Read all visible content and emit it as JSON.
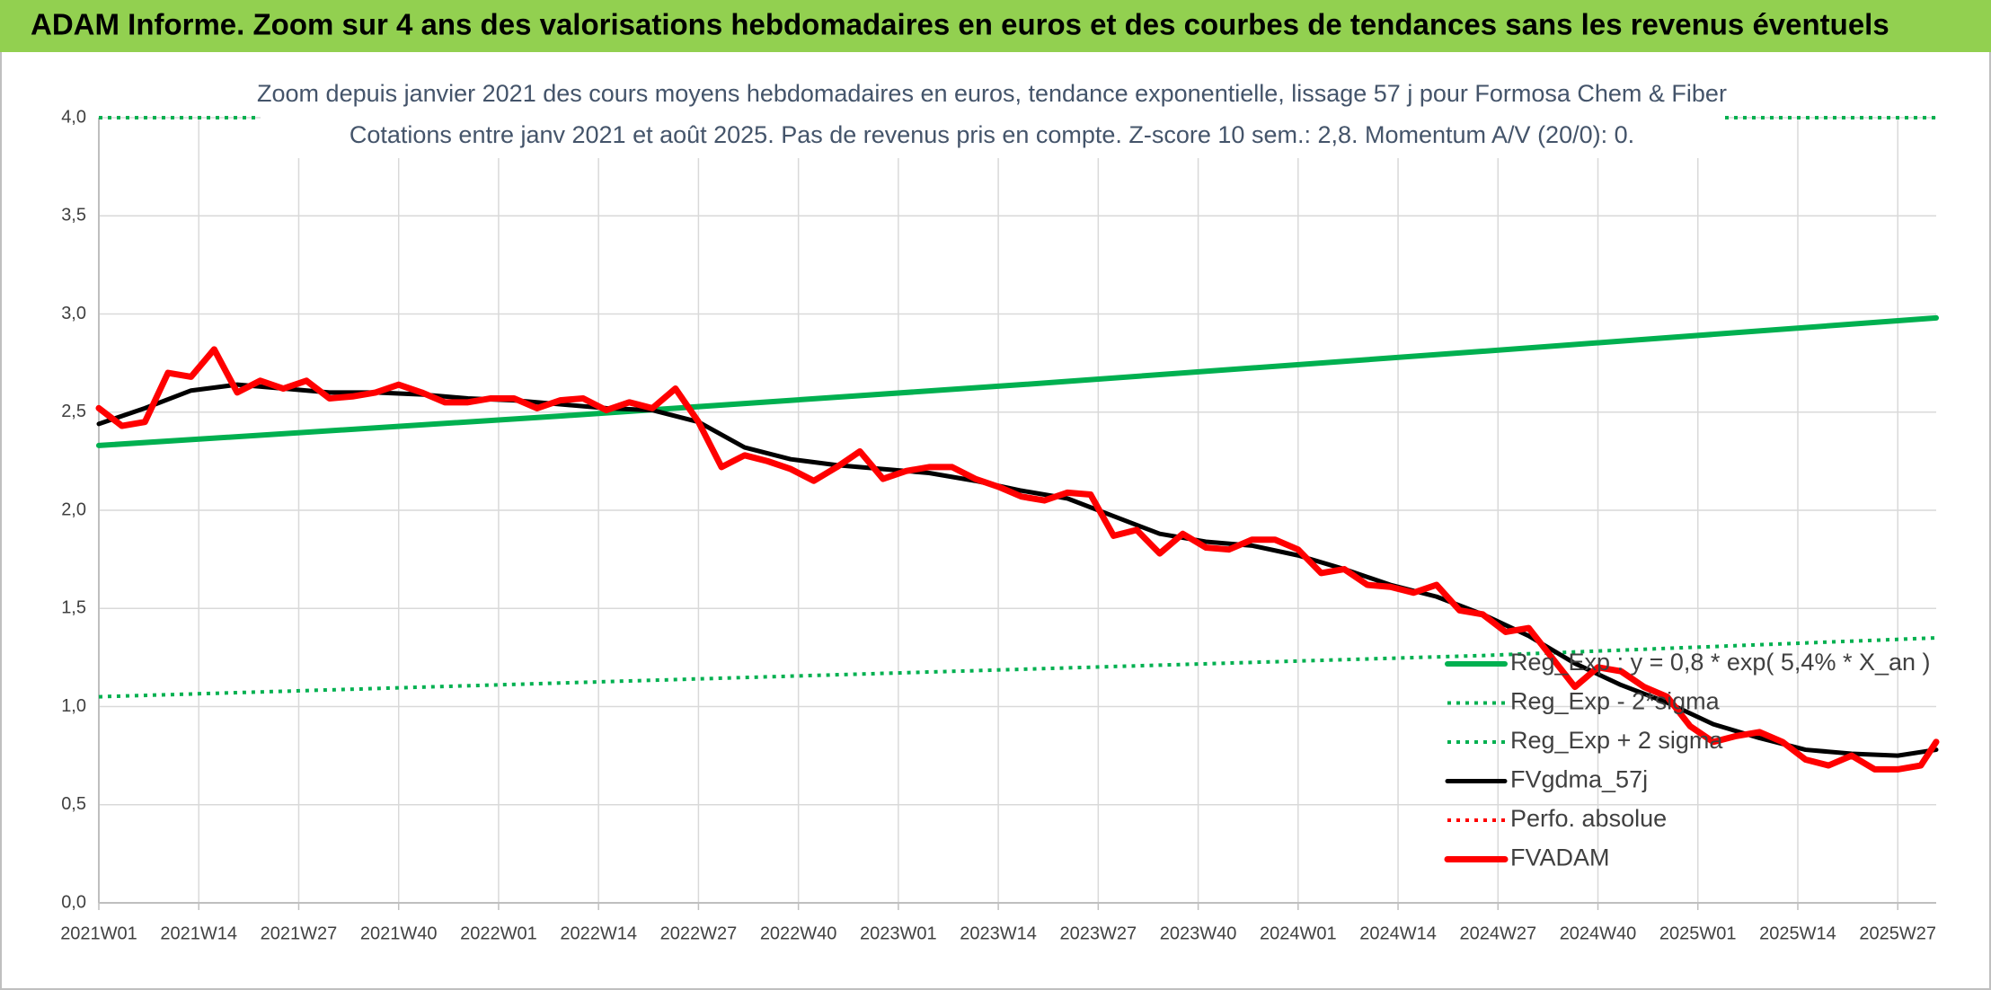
{
  "header": {
    "title": "ADAM Informe. Zoom sur 4 ans des valorisations hebdomadaires en euros et des courbes de tendances sans les revenus éventuels"
  },
  "chart_data": {
    "type": "line",
    "subtitle": [
      "Zoom depuis janvier 2021 des cours moyens hebdomadaires en euros, tendance exponentielle, lissage 57 j pour Formosa Chem & Fiber",
      "Cotations entre janv 2021 et août 2025. Pas de revenus pris en compte. Z-score 10 sem.: 2,8. Momentum A/V (20/0): 0."
    ],
    "xlim": [
      0,
      239
    ],
    "xticks": [
      {
        "value": 0,
        "label": "2021W01"
      },
      {
        "value": 13,
        "label": "2021W14"
      },
      {
        "value": 26,
        "label": "2021W27"
      },
      {
        "value": 39,
        "label": "2021W40"
      },
      {
        "value": 52,
        "label": "2022W01"
      },
      {
        "value": 65,
        "label": "2022W14"
      },
      {
        "value": 78,
        "label": "2022W27"
      },
      {
        "value": 91,
        "label": "2022W40"
      },
      {
        "value": 104,
        "label": "2023W01"
      },
      {
        "value": 117,
        "label": "2023W14"
      },
      {
        "value": 130,
        "label": "2023W27"
      },
      {
        "value": 143,
        "label": "2023W40"
      },
      {
        "value": 156,
        "label": "2024W01"
      },
      {
        "value": 169,
        "label": "2024W14"
      },
      {
        "value": 182,
        "label": "2024W27"
      },
      {
        "value": 195,
        "label": "2024W40"
      },
      {
        "value": 208,
        "label": "2025W01"
      },
      {
        "value": 221,
        "label": "2025W14"
      },
      {
        "value": 234,
        "label": "2025W27"
      }
    ],
    "ylim": [
      0,
      4
    ],
    "yticks": [
      {
        "value": 0,
        "label": "0,0"
      },
      {
        "value": 0.5,
        "label": "0,5"
      },
      {
        "value": 1,
        "label": "1,0"
      },
      {
        "value": 1.5,
        "label": "1,5"
      },
      {
        "value": 2,
        "label": "2,0"
      },
      {
        "value": 2.5,
        "label": "2,5"
      },
      {
        "value": 3,
        "label": "3,0"
      },
      {
        "value": 3.5,
        "label": "3,5"
      },
      {
        "value": 4,
        "label": "4,0"
      }
    ],
    "grid": true,
    "legend": "lower right",
    "series": [
      {
        "name": "Reg_Exp : y = 0,8 * exp( 5,4% *  X_an )",
        "color": "#00b050",
        "style": "solid",
        "width": 6,
        "x": [
          0,
          60,
          120,
          180,
          239
        ],
        "values": [
          2.33,
          2.48,
          2.64,
          2.81,
          2.98
        ]
      },
      {
        "name": "Reg_Exp - 2*sigma",
        "color": "#00b050",
        "style": "dotted",
        "width": 4,
        "x": [
          0,
          60,
          120,
          180,
          239
        ],
        "values": [
          1.05,
          1.12,
          1.19,
          1.26,
          1.35
        ]
      },
      {
        "name": "Reg_Exp + 2 sigma",
        "color": "#00b050",
        "style": "dotted",
        "width": 4,
        "x": [
          0,
          239
        ],
        "values": [
          4.0,
          4.0
        ]
      },
      {
        "name": "FVgdma_57j",
        "color": "#000000",
        "style": "solid",
        "width": 5,
        "x": [
          0,
          6,
          12,
          18,
          24,
          30,
          36,
          42,
          48,
          54,
          60,
          66,
          72,
          78,
          84,
          90,
          96,
          102,
          108,
          114,
          120,
          126,
          132,
          138,
          144,
          150,
          156,
          162,
          168,
          174,
          180,
          186,
          192,
          198,
          204,
          210,
          216,
          222,
          228,
          234,
          239
        ],
        "values": [
          2.44,
          2.52,
          2.61,
          2.64,
          2.62,
          2.6,
          2.6,
          2.59,
          2.57,
          2.56,
          2.54,
          2.52,
          2.51,
          2.45,
          2.32,
          2.26,
          2.23,
          2.21,
          2.19,
          2.15,
          2.1,
          2.06,
          1.97,
          1.88,
          1.84,
          1.82,
          1.77,
          1.7,
          1.62,
          1.56,
          1.47,
          1.36,
          1.22,
          1.11,
          1.02,
          0.91,
          0.84,
          0.78,
          0.76,
          0.75,
          0.78
        ]
      },
      {
        "name": "Perfo. absolue",
        "color": "#ff0000",
        "style": "dotted",
        "width": 4,
        "x": [],
        "values": []
      },
      {
        "name": "FVADAM",
        "color": "#ff0000",
        "style": "solid",
        "width": 7,
        "x": [
          0,
          3,
          6,
          9,
          12,
          15,
          18,
          21,
          24,
          27,
          30,
          33,
          36,
          39,
          42,
          45,
          48,
          51,
          54,
          57,
          60,
          63,
          66,
          69,
          72,
          75,
          78,
          81,
          84,
          87,
          90,
          93,
          96,
          99,
          102,
          105,
          108,
          111,
          114,
          117,
          120,
          123,
          126,
          129,
          132,
          135,
          138,
          141,
          144,
          147,
          150,
          153,
          156,
          159,
          162,
          165,
          168,
          171,
          174,
          177,
          180,
          183,
          186,
          189,
          192,
          195,
          198,
          201,
          204,
          207,
          210,
          213,
          216,
          219,
          222,
          225,
          228,
          231,
          234,
          237,
          239
        ],
        "values": [
          2.52,
          2.43,
          2.45,
          2.7,
          2.68,
          2.82,
          2.6,
          2.66,
          2.62,
          2.66,
          2.57,
          2.58,
          2.6,
          2.64,
          2.6,
          2.55,
          2.55,
          2.57,
          2.57,
          2.52,
          2.56,
          2.57,
          2.51,
          2.55,
          2.52,
          2.62,
          2.45,
          2.22,
          2.28,
          2.25,
          2.21,
          2.15,
          2.22,
          2.3,
          2.16,
          2.2,
          2.22,
          2.22,
          2.16,
          2.12,
          2.07,
          2.05,
          2.09,
          2.08,
          1.87,
          1.9,
          1.78,
          1.88,
          1.81,
          1.8,
          1.85,
          1.85,
          1.8,
          1.68,
          1.7,
          1.62,
          1.61,
          1.58,
          1.62,
          1.49,
          1.47,
          1.38,
          1.4,
          1.25,
          1.1,
          1.2,
          1.18,
          1.1,
          1.05,
          0.9,
          0.82,
          0.85,
          0.87,
          0.82,
          0.73,
          0.7,
          0.75,
          0.68,
          0.68,
          0.7,
          0.82
        ]
      }
    ]
  }
}
